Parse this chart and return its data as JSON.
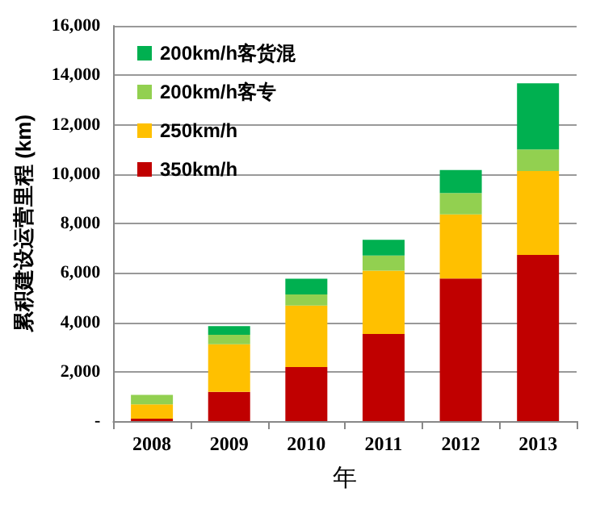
{
  "chart_data": {
    "type": "bar",
    "stacked": true,
    "xlabel": "年",
    "ylabel": "累积建设运营里程 (km)",
    "categories": [
      "2008",
      "2009",
      "2010",
      "2011",
      "2012",
      "2013"
    ],
    "series": [
      {
        "name": "350km/h",
        "color": "#c00000",
        "values": [
          100,
          1180,
          2190,
          3530,
          5770,
          6730
        ]
      },
      {
        "name": "250km/h",
        "color": "#ffc000",
        "values": [
          580,
          1930,
          2490,
          2560,
          2600,
          3390
        ]
      },
      {
        "name": "200km/h客专",
        "color": "#92d050",
        "values": [
          380,
          380,
          450,
          610,
          860,
          880
        ]
      },
      {
        "name": "200km/h客货混",
        "color": "#00b050",
        "values": [
          0,
          355,
          635,
          635,
          930,
          2670
        ]
      }
    ],
    "ylim": [
      0,
      16000
    ],
    "yticks": [
      {
        "value": 0,
        "label": "-"
      },
      {
        "value": 2000,
        "label": "2,000"
      },
      {
        "value": 4000,
        "label": "4,000"
      },
      {
        "value": 6000,
        "label": "6,000"
      },
      {
        "value": 8000,
        "label": "8,000"
      },
      {
        "value": 10000,
        "label": "10,000"
      },
      {
        "value": 12000,
        "label": "12,000"
      },
      {
        "value": 14000,
        "label": "14,000"
      },
      {
        "value": 16000,
        "label": "16,000"
      }
    ],
    "grid": "y",
    "legend": "top left"
  }
}
